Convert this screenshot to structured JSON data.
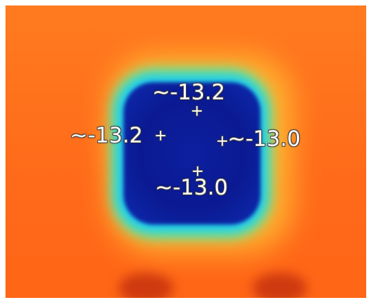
{
  "image": {
    "subject": "thermal-image",
    "colors": {
      "background_warm": "#ff6a1a",
      "mid_yellow": "#ffd23a",
      "mid_green": "#6bf08a",
      "mid_cyan": "#1fc9f0",
      "cold_core": "#0b1a92",
      "label_text": "#ffffff"
    }
  },
  "readings": {
    "top": "~-13.2",
    "left": "~-13.2",
    "right": "~-13.0",
    "bottom": "~-13.0"
  },
  "markers": {
    "top": "+",
    "left": "+",
    "right": "+",
    "bottom": "+"
  }
}
